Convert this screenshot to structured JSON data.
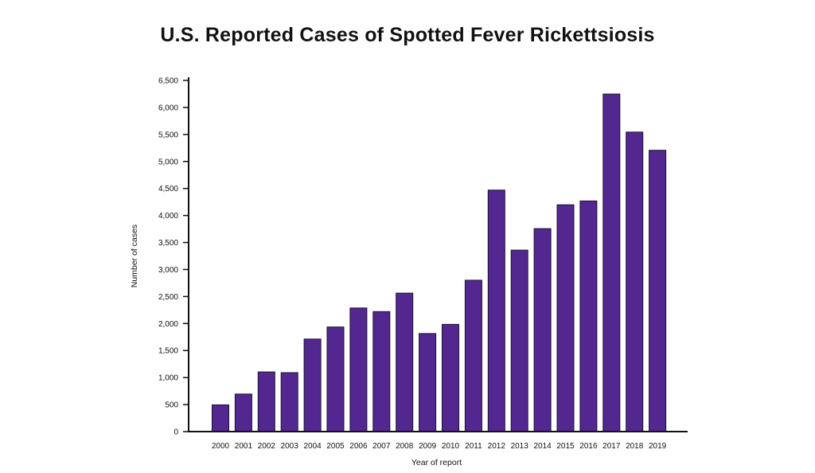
{
  "chart_data": {
    "type": "bar",
    "title": "U.S. Reported Cases of Spotted Fever Rickettsiosis",
    "xlabel": "Year of report",
    "ylabel": "Number of cases",
    "categories": [
      "2000",
      "2001",
      "2002",
      "2003",
      "2004",
      "2005",
      "2006",
      "2007",
      "2008",
      "2009",
      "2010",
      "2011",
      "2012",
      "2013",
      "2014",
      "2015",
      "2016",
      "2017",
      "2018",
      "2019"
    ],
    "values": [
      495,
      695,
      1104,
      1091,
      1713,
      1936,
      2288,
      2221,
      2563,
      1815,
      1985,
      2802,
      4470,
      3359,
      3757,
      4198,
      4269,
      6248,
      5544,
      5207
    ],
    "ylim": [
      0,
      6500
    ],
    "yticks": [
      0,
      500,
      1000,
      1500,
      2000,
      2500,
      3000,
      3500,
      4000,
      4500,
      5000,
      5500,
      6000,
      6500
    ],
    "ytick_labels": [
      "0",
      "500",
      "1,000",
      "1,500",
      "2,000",
      "2,500",
      "3,000",
      "3,500",
      "4,000",
      "4,500",
      "5,000",
      "5,500",
      "6,000",
      "6,500"
    ],
    "bar_color": "#522790",
    "grid": false,
    "legend": "none"
  }
}
